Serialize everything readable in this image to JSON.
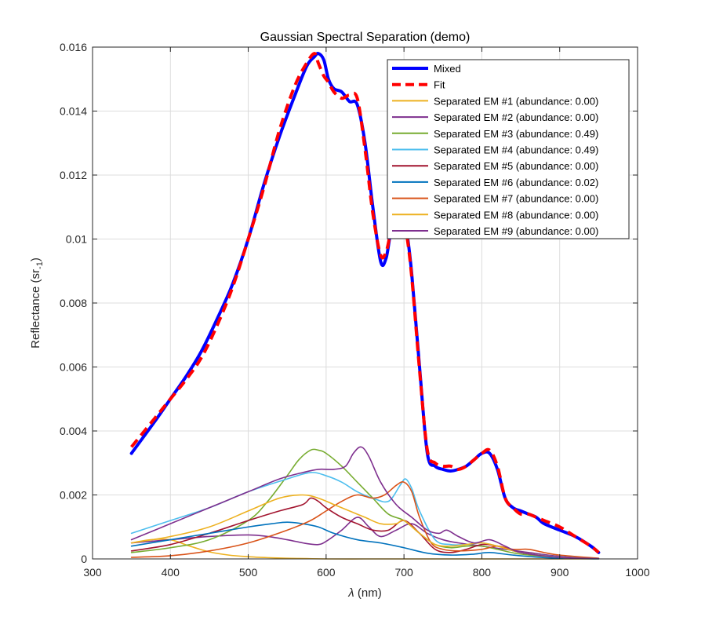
{
  "chart_data": {
    "type": "line",
    "title": "Gaussian Spectral Separation (demo)",
    "xlabel_symbol": "λ",
    "xlabel_unit": " (nm)",
    "ylabel_main": "Reflectance (sr",
    "ylabel_sub": "-1",
    "ylabel_end": ")",
    "xlim": [
      300,
      1000
    ],
    "ylim": [
      0,
      0.016
    ],
    "xticks": [
      300,
      400,
      500,
      600,
      700,
      800,
      900,
      1000
    ],
    "xtick_labels": [
      "300",
      "400",
      "500",
      "600",
      "700",
      "800",
      "900",
      "1000"
    ],
    "yticks": [
      0,
      0.002,
      0.004,
      0.006,
      0.008,
      0.01,
      0.012,
      0.014,
      0.016
    ],
    "ytick_labels": [
      "0",
      "0.002",
      "0.004",
      "0.006",
      "0.008",
      "0.01",
      "0.012",
      "0.014",
      "0.016"
    ],
    "grid": true,
    "legend_position": "top-right",
    "series": [
      {
        "name": "Mixed",
        "color": "#0000ff",
        "style": "solid",
        "width": "thick",
        "x": [
          350,
          380,
          400,
          420,
          440,
          460,
          480,
          500,
          520,
          540,
          560,
          575,
          585,
          590,
          597,
          603,
          610,
          620,
          630,
          640,
          650,
          660,
          670,
          677,
          683,
          690,
          697,
          703,
          710,
          720,
          730,
          740,
          750,
          760,
          770,
          780,
          790,
          800,
          810,
          820,
          830,
          840,
          850,
          860,
          870,
          880,
          900,
          920,
          940,
          950
        ],
        "y": [
          0.0033,
          0.0043,
          0.005,
          0.0057,
          0.0065,
          0.0075,
          0.0086,
          0.01,
          0.0117,
          0.0132,
          0.0145,
          0.0154,
          0.0157,
          0.0158,
          0.0156,
          0.015,
          0.0147,
          0.0146,
          0.0143,
          0.0142,
          0.013,
          0.011,
          0.0093,
          0.0094,
          0.0102,
          0.0106,
          0.0107,
          0.0103,
          0.0089,
          0.006,
          0.0033,
          0.0029,
          0.0028,
          0.00275,
          0.0028,
          0.0029,
          0.0031,
          0.0033,
          0.0033,
          0.0028,
          0.0019,
          0.0016,
          0.0015,
          0.0014,
          0.0013,
          0.0011,
          0.0009,
          0.0007,
          0.0004,
          0.0002
        ]
      },
      {
        "name": "Fit",
        "color": "#ff0000",
        "style": "dashed",
        "width": "thick",
        "x": [
          350,
          380,
          400,
          420,
          440,
          460,
          480,
          500,
          520,
          540,
          560,
          575,
          585,
          590,
          597,
          603,
          610,
          620,
          630,
          640,
          650,
          660,
          670,
          677,
          683,
          690,
          697,
          703,
          710,
          720,
          730,
          740,
          750,
          760,
          770,
          780,
          790,
          800,
          810,
          820,
          830,
          840,
          850,
          860,
          870,
          880,
          900,
          920,
          940,
          950
        ],
        "y": [
          0.0035,
          0.0044,
          0.005,
          0.0056,
          0.0063,
          0.0073,
          0.0085,
          0.01,
          0.0116,
          0.0134,
          0.0148,
          0.0155,
          0.0158,
          0.0155,
          0.0151,
          0.0149,
          0.0146,
          0.0144,
          0.0145,
          0.0144,
          0.0128,
          0.0108,
          0.0095,
          0.0096,
          0.0102,
          0.0106,
          0.0107,
          0.0102,
          0.0088,
          0.0059,
          0.0034,
          0.003,
          0.0029,
          0.0029,
          0.0028,
          0.0029,
          0.0031,
          0.0033,
          0.0034,
          0.0029,
          0.0019,
          0.0016,
          0.0014,
          0.0014,
          0.0013,
          0.0012,
          0.001,
          0.0007,
          0.0004,
          0.0002
        ]
      },
      {
        "name": "Separated EM #1 (abundance: 0.00)",
        "color": "#edb120",
        "style": "solid",
        "width": "thin",
        "x": [
          350,
          375,
          400,
          425,
          450,
          475,
          500,
          525,
          550,
          575,
          600,
          650,
          700,
          750,
          800,
          850,
          900,
          950
        ],
        "y": [
          0.0005,
          0.0006,
          0.0006,
          0.0004,
          0.00022,
          0.00012,
          7e-05,
          4e-05,
          2e-05,
          1e-05,
          0,
          0,
          0,
          0,
          0,
          0,
          0,
          0
        ]
      },
      {
        "name": "Separated EM #2 (abundance: 0.00)",
        "color": "#7e2f8e",
        "style": "solid",
        "width": "thin",
        "x": [
          350,
          400,
          450,
          500,
          525,
          550,
          575,
          590,
          600,
          620,
          640,
          655,
          670,
          690,
          710,
          730,
          750,
          770,
          800,
          830,
          860,
          900,
          950
        ],
        "y": [
          0.0005,
          0.0006,
          0.0007,
          0.00075,
          0.0007,
          0.0006,
          0.00048,
          0.00045,
          0.00055,
          0.0009,
          0.0013,
          0.001,
          0.0007,
          0.0009,
          0.0011,
          0.0008,
          0.0006,
          0.0005,
          0.0004,
          0.0003,
          0.0002,
          8e-05,
          2e-05
        ]
      },
      {
        "name": "Separated EM #3 (abundance: 0.49)",
        "color": "#77ac30",
        "style": "solid",
        "width": "thin",
        "x": [
          350,
          400,
          450,
          500,
          525,
          550,
          565,
          580,
          590,
          600,
          620,
          640,
          660,
          680,
          700,
          720,
          740,
          760,
          780,
          800,
          820,
          850,
          900,
          950
        ],
        "y": [
          0.0002,
          0.00035,
          0.0006,
          0.0012,
          0.0018,
          0.0026,
          0.0031,
          0.0034,
          0.0034,
          0.0033,
          0.0029,
          0.0024,
          0.0019,
          0.0014,
          0.0012,
          0.0008,
          0.00045,
          0.00035,
          0.0004,
          0.0004,
          0.0003,
          0.00015,
          5e-05,
          1e-05
        ]
      },
      {
        "name": "Separated EM #4 (abundance: 0.49)",
        "color": "#4dbeee",
        "style": "solid",
        "width": "thin",
        "x": [
          350,
          400,
          450,
          500,
          550,
          580,
          600,
          620,
          640,
          660,
          680,
          695,
          702,
          710,
          720,
          740,
          760,
          780,
          800,
          820,
          850,
          900,
          950
        ],
        "y": [
          0.0008,
          0.0012,
          0.0016,
          0.0021,
          0.0025,
          0.0027,
          0.0026,
          0.0024,
          0.0021,
          0.0019,
          0.0018,
          0.0023,
          0.0025,
          0.0022,
          0.0015,
          0.0006,
          0.00045,
          0.00045,
          0.0005,
          0.0004,
          0.0002,
          6e-05,
          1e-05
        ]
      },
      {
        "name": "Separated EM #5 (abundance: 0.00)",
        "color": "#a2142f",
        "style": "solid",
        "width": "thin",
        "x": [
          350,
          400,
          450,
          500,
          540,
          570,
          580,
          590,
          600,
          620,
          640,
          660,
          680,
          700,
          720,
          740,
          760,
          780,
          800,
          820,
          850,
          900,
          950
        ],
        "y": [
          0.00025,
          0.00045,
          0.0008,
          0.0012,
          0.0015,
          0.0017,
          0.0019,
          0.0018,
          0.0016,
          0.0013,
          0.0011,
          0.0009,
          0.0009,
          0.0012,
          0.0008,
          0.0003,
          0.0002,
          0.0003,
          0.00045,
          0.0004,
          0.0002,
          5e-05,
          1e-05
        ]
      },
      {
        "name": "Separated EM #6 (abundance: 0.02)",
        "color": "#0072bd",
        "style": "solid",
        "width": "thin",
        "x": [
          350,
          400,
          450,
          500,
          530,
          550,
          570,
          590,
          610,
          640,
          670,
          700,
          730,
          760,
          790,
          810,
          840,
          880,
          920,
          950
        ],
        "y": [
          0.0004,
          0.0006,
          0.0008,
          0.001,
          0.0011,
          0.00115,
          0.0011,
          0.001,
          0.0008,
          0.0006,
          0.0005,
          0.00035,
          0.00018,
          0.00012,
          0.00015,
          0.0002,
          0.00012,
          4e-05,
          1e-05,
          0
        ]
      },
      {
        "name": "Separated EM #7 (abundance: 0.00)",
        "color": "#d95319",
        "style": "solid",
        "width": "thin",
        "x": [
          350,
          400,
          450,
          500,
          550,
          580,
          600,
          620,
          640,
          660,
          675,
          690,
          700,
          710,
          720,
          735,
          750,
          770,
          800,
          820,
          840,
          860,
          880,
          900,
          950
        ],
        "y": [
          5e-05,
          0.0001,
          0.00025,
          0.0005,
          0.0009,
          0.0012,
          0.0015,
          0.0018,
          0.002,
          0.0019,
          0.002,
          0.0023,
          0.0024,
          0.0021,
          0.0013,
          0.0005,
          0.0003,
          0.00025,
          0.0003,
          0.0004,
          0.0003,
          0.0003,
          0.0002,
          0.00012,
          2e-05
        ]
      },
      {
        "name": "Separated EM #8 (abundance: 0.00)",
        "color": "#edb120",
        "style": "solid",
        "width": "thin",
        "x": [
          350,
          400,
          450,
          500,
          540,
          570,
          590,
          610,
          630,
          650,
          670,
          690,
          700,
          720,
          740,
          760,
          780,
          800,
          820,
          850,
          900,
          950
        ],
        "y": [
          0.0005,
          0.0007,
          0.001,
          0.0015,
          0.0019,
          0.002,
          0.0019,
          0.0017,
          0.0015,
          0.0013,
          0.0011,
          0.0011,
          0.0012,
          0.0008,
          0.00045,
          0.0004,
          0.00045,
          0.0005,
          0.0004,
          0.0002,
          5e-05,
          1e-05
        ]
      },
      {
        "name": "Separated EM #9 (abundance: 0.00)",
        "color": "#7e2f8e",
        "style": "solid",
        "width": "thin",
        "x": [
          350,
          400,
          450,
          500,
          540,
          570,
          590,
          610,
          625,
          635,
          645,
          655,
          670,
          690,
          710,
          730,
          745,
          755,
          770,
          790,
          810,
          830,
          850,
          900,
          950
        ],
        "y": [
          0.0006,
          0.0011,
          0.0016,
          0.0021,
          0.0025,
          0.0027,
          0.0028,
          0.0028,
          0.0029,
          0.0033,
          0.0035,
          0.0032,
          0.0024,
          0.0017,
          0.0013,
          0.0009,
          0.0008,
          0.0009,
          0.0007,
          0.0005,
          0.0006,
          0.0004,
          0.0002,
          5e-05,
          1e-05
        ]
      }
    ]
  }
}
